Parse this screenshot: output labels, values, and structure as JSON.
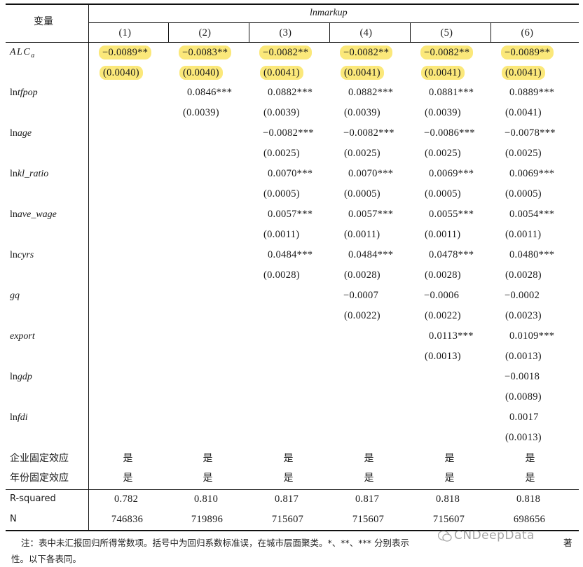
{
  "header": {
    "var_label": "变量",
    "dep_var": "lnmarkup",
    "columns": [
      "(1)",
      "(2)",
      "(3)",
      "(4)",
      "(5)",
      "(6)"
    ]
  },
  "rows": [
    {
      "label": "ALC",
      "label_sub": "a",
      "coef": [
        "−0.0089**",
        "−0.0083**",
        "−0.0082**",
        "−0.0082**",
        "−0.0082**",
        "−0.0089**"
      ],
      "se": [
        "(0.0040)",
        "(0.0040)",
        "(0.0041)",
        "(0.0041)",
        "(0.0041)",
        "(0.0041)"
      ]
    },
    {
      "label": "lntfpop",
      "coef": [
        "",
        "0.0846***",
        "0.0882***",
        "0.0882***",
        "0.0881***",
        "0.0889***"
      ],
      "se": [
        "",
        "(0.0039)",
        "(0.0039)",
        "(0.0039)",
        "(0.0039)",
        "(0.0041)"
      ]
    },
    {
      "label": "lnage",
      "coef": [
        "",
        "",
        "−0.0082***",
        "−0.0082***",
        "−0.0086***",
        "−0.0078***"
      ],
      "se": [
        "",
        "",
        "(0.0025)",
        "(0.0025)",
        "(0.0025)",
        "(0.0025)"
      ]
    },
    {
      "label": "lnkl_ratio",
      "coef": [
        "",
        "",
        "0.0070***",
        "0.0070***",
        "0.0069***",
        "0.0069***"
      ],
      "se": [
        "",
        "",
        "(0.0005)",
        "(0.0005)",
        "(0.0005)",
        "(0.0005)"
      ]
    },
    {
      "label": "lnave_wage",
      "coef": [
        "",
        "",
        "0.0057***",
        "0.0057***",
        "0.0055***",
        "0.0054***"
      ],
      "se": [
        "",
        "",
        "(0.0011)",
        "(0.0011)",
        "(0.0011)",
        "(0.0011)"
      ]
    },
    {
      "label": "lncyrs",
      "coef": [
        "",
        "",
        "0.0484***",
        "0.0484***",
        "0.0478***",
        "0.0480***"
      ],
      "se": [
        "",
        "",
        "(0.0028)",
        "(0.0028)",
        "(0.0028)",
        "(0.0028)"
      ]
    },
    {
      "label": "gq",
      "coef": [
        "",
        "",
        "",
        "−0.0007",
        "−0.0006",
        "−0.0002"
      ],
      "se": [
        "",
        "",
        "",
        "(0.0022)",
        "(0.0022)",
        "(0.0023)"
      ]
    },
    {
      "label": "export",
      "coef": [
        "",
        "",
        "",
        "",
        "0.0113***",
        "0.0109***"
      ],
      "se": [
        "",
        "",
        "",
        "",
        "(0.0013)",
        "(0.0013)"
      ]
    },
    {
      "label": "lngdp",
      "coef": [
        "",
        "",
        "",
        "",
        "",
        "−0.0018"
      ],
      "se": [
        "",
        "",
        "",
        "",
        "",
        "(0.0089)"
      ]
    },
    {
      "label": "lnfdi",
      "coef": [
        "",
        "",
        "",
        "",
        "",
        "0.0017"
      ],
      "se": [
        "",
        "",
        "",
        "",
        "",
        "(0.0013)"
      ]
    }
  ],
  "fixed_effects": [
    {
      "label": "企业固定效应",
      "values": [
        "是",
        "是",
        "是",
        "是",
        "是",
        "是"
      ]
    },
    {
      "label": "年份固定效应",
      "values": [
        "是",
        "是",
        "是",
        "是",
        "是",
        "是"
      ]
    }
  ],
  "stats": [
    {
      "label": "R-squared",
      "values": [
        "0.782",
        "0.810",
        "0.817",
        "0.817",
        "0.818",
        "0.818"
      ]
    },
    {
      "label": "N",
      "values": [
        "746836",
        "719896",
        "715607",
        "715607",
        "715607",
        "698656"
      ]
    }
  ],
  "note_line1": "注：表中未汇报回归所得常数项。括号中为回归系数标准误，在城市层面聚类。*、**、*** 分别表示",
  "note_line2_fragment": "著",
  "note_line3": "性。以下各表同。",
  "watermark": "CNDeepData",
  "highlight_color": "#fbe87a"
}
